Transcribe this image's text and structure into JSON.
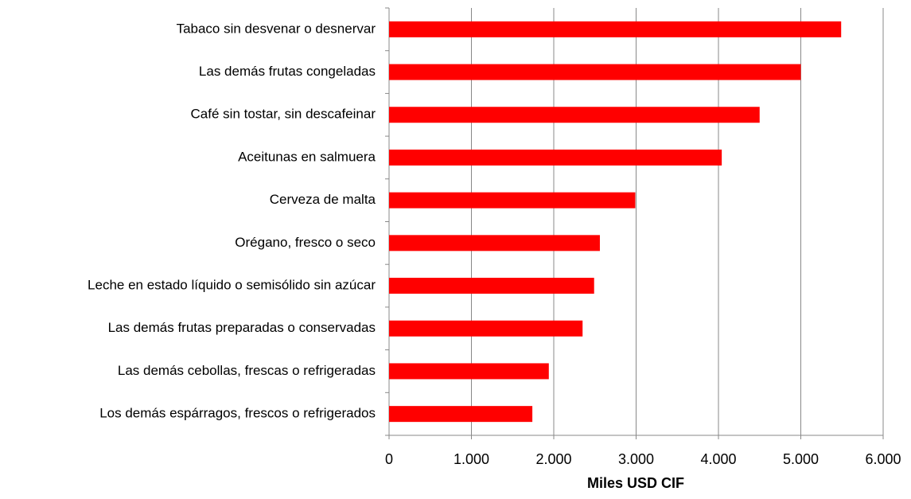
{
  "chart_data": {
    "type": "hbar",
    "categories": [
      "Tabaco sin desvenar o desnervar",
      "Las demás frutas congeladas",
      "Café sin tostar, sin descafeinar",
      "Aceitunas en salmuera",
      "Cerveza de malta",
      "Orégano, fresco o seco",
      "Leche en estado líquido o semisólido sin azúcar",
      "Las demás frutas preparadas o conservadas",
      "Las demás cebollas, frescas o refrigeradas",
      "Los demás espárragos, frescos o refrigerados"
    ],
    "values": [
      5490,
      5000,
      4500,
      4040,
      2990,
      2560,
      2490,
      2350,
      1940,
      1740
    ],
    "color": "#ff0000",
    "x_label": "Miles USD CIF",
    "xlim": [
      0,
      6000
    ],
    "xticks": [
      0,
      {
        "value": 1000,
        "label": "1.000"
      },
      {
        "value": 2000,
        "label": "2.000"
      },
      {
        "value": 3000,
        "label": "3.000"
      },
      {
        "value": 4000,
        "label": "4.000"
      },
      {
        "value": 5000,
        "label": "5.000"
      },
      {
        "value": 6000,
        "label": "6.000"
      }
    ],
    "grid": true
  }
}
